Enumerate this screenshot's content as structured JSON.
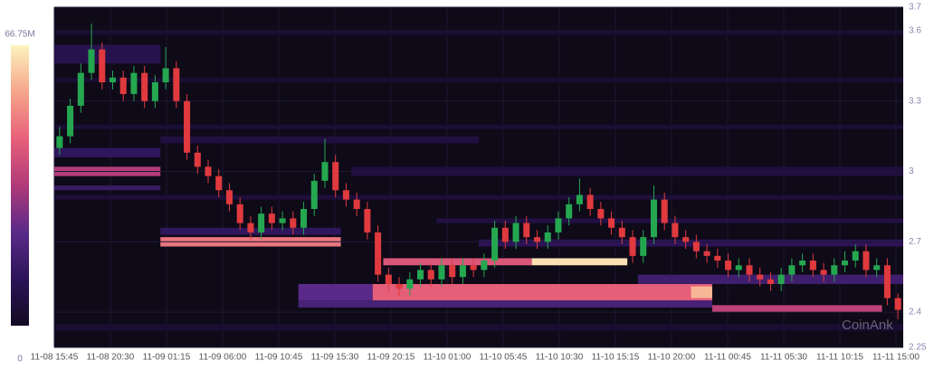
{
  "chart_data": {
    "type": "heatmap-candlestick",
    "watermark": "CoinAnk",
    "ylim": [
      2.25,
      3.7
    ],
    "yticks": [
      2.25,
      2.4,
      2.7,
      3,
      3.3,
      3.6,
      3.7
    ],
    "clim": [
      0,
      66750000
    ],
    "cticks": [
      0,
      {
        "value": 66750000,
        "label": "66.75M"
      }
    ],
    "colormap": [
      "#120a22",
      "#2c1458",
      "#5a2a8a",
      "#b03a78",
      "#e8607a",
      "#f5a58a",
      "#fdf3bf"
    ],
    "up_color": "#25a750",
    "down_color": "#e03a3e",
    "categories": [
      "11-08 15:45",
      "11-08 20:30",
      "11-09 01:15",
      "11-09 06:00",
      "11-09 10:45",
      "11-09 15:30",
      "11-09 20:15",
      "11-10 01:00",
      "11-10 05:45",
      "11-10 10:30",
      "11-10 15:15",
      "11-10 20:00",
      "11-11 00:45",
      "11-11 05:30",
      "11-11 10:15",
      "11-11 15:00"
    ],
    "candles": {
      "open": [
        3.1,
        3.15,
        3.28,
        3.42,
        3.52,
        3.38,
        3.4,
        3.33,
        3.42,
        3.3,
        3.38,
        3.44,
        3.3,
        3.08,
        3.02,
        2.98,
        2.92,
        2.86,
        2.78,
        2.74,
        2.82,
        2.78,
        2.8,
        2.76,
        2.84,
        2.96,
        3.04,
        2.92,
        2.88,
        2.84,
        2.74,
        2.56,
        2.52,
        2.5,
        2.54,
        2.58,
        2.54,
        2.6,
        2.55,
        2.6,
        2.58,
        2.62,
        2.76,
        2.7,
        2.78,
        2.72,
        2.7,
        2.74,
        2.8,
        2.86,
        2.9,
        2.84,
        2.8,
        2.76,
        2.72,
        2.64,
        2.72,
        2.88,
        2.78,
        2.72,
        2.7,
        2.66,
        2.64,
        2.62,
        2.58,
        2.6,
        2.56,
        2.54,
        2.52,
        2.56,
        2.6,
        2.62,
        2.58,
        2.56,
        2.6,
        2.62,
        2.66,
        2.58,
        2.6,
        2.46
      ],
      "high": [
        3.19,
        3.31,
        3.46,
        3.63,
        3.55,
        3.43,
        3.43,
        3.45,
        3.45,
        3.41,
        3.53,
        3.47,
        3.33,
        3.11,
        3.05,
        3.01,
        2.95,
        2.89,
        2.81,
        2.85,
        2.85,
        2.83,
        2.83,
        2.87,
        2.99,
        3.14,
        3.07,
        2.95,
        2.91,
        2.87,
        2.77,
        2.59,
        2.55,
        2.57,
        2.61,
        2.61,
        2.63,
        2.63,
        2.63,
        2.63,
        2.65,
        2.79,
        2.79,
        2.81,
        2.81,
        2.75,
        2.77,
        2.83,
        2.89,
        2.97,
        2.93,
        2.87,
        2.83,
        2.79,
        2.75,
        2.75,
        2.94,
        2.91,
        2.81,
        2.75,
        2.73,
        2.69,
        2.67,
        2.65,
        2.63,
        2.63,
        2.59,
        2.57,
        2.59,
        2.63,
        2.65,
        2.65,
        2.61,
        2.63,
        2.66,
        2.69,
        2.69,
        2.63,
        2.63,
        2.48
      ],
      "low": [
        3.07,
        3.12,
        3.25,
        3.39,
        3.35,
        3.35,
        3.3,
        3.3,
        3.27,
        3.27,
        3.35,
        3.27,
        3.05,
        2.99,
        2.95,
        2.89,
        2.83,
        2.75,
        2.71,
        2.71,
        2.75,
        2.75,
        2.73,
        2.73,
        2.81,
        2.93,
        2.89,
        2.85,
        2.81,
        2.71,
        2.53,
        2.49,
        2.47,
        2.47,
        2.51,
        2.51,
        2.51,
        2.52,
        2.52,
        2.55,
        2.55,
        2.59,
        2.67,
        2.67,
        2.69,
        2.67,
        2.67,
        2.71,
        2.77,
        2.83,
        2.81,
        2.77,
        2.73,
        2.69,
        2.61,
        2.61,
        2.69,
        2.75,
        2.69,
        2.67,
        2.63,
        2.61,
        2.59,
        2.55,
        2.55,
        2.53,
        2.51,
        2.49,
        2.49,
        2.53,
        2.57,
        2.55,
        2.53,
        2.53,
        2.57,
        2.59,
        2.55,
        2.55,
        2.43,
        2.37
      ],
      "close": [
        3.15,
        3.28,
        3.42,
        3.52,
        3.38,
        3.4,
        3.33,
        3.42,
        3.3,
        3.38,
        3.44,
        3.3,
        3.08,
        3.02,
        2.98,
        2.92,
        2.86,
        2.78,
        2.74,
        2.82,
        2.78,
        2.8,
        2.76,
        2.84,
        2.96,
        3.04,
        2.92,
        2.88,
        2.84,
        2.74,
        2.56,
        2.52,
        2.5,
        2.54,
        2.58,
        2.54,
        2.6,
        2.55,
        2.6,
        2.58,
        2.62,
        2.76,
        2.7,
        2.78,
        2.72,
        2.7,
        2.74,
        2.8,
        2.86,
        2.9,
        2.84,
        2.8,
        2.76,
        2.72,
        2.64,
        2.72,
        2.88,
        2.78,
        2.72,
        2.7,
        2.66,
        2.64,
        2.62,
        2.58,
        2.6,
        2.56,
        2.54,
        2.52,
        2.56,
        2.6,
        2.62,
        2.58,
        2.56,
        2.6,
        2.62,
        2.66,
        2.58,
        2.6,
        2.46,
        2.41
      ]
    },
    "zones": [
      {
        "x0": 0,
        "x1": 80,
        "y0": 3.58,
        "y1": 3.6,
        "value": 3000000
      },
      {
        "x0": 0,
        "x1": 80,
        "y0": 3.38,
        "y1": 3.4,
        "value": 3000000
      },
      {
        "x0": 0,
        "x1": 80,
        "y0": 3.18,
        "y1": 3.2,
        "value": 4000000
      },
      {
        "x0": 0,
        "x1": 80,
        "y0": 2.88,
        "y1": 2.9,
        "value": 5000000
      },
      {
        "x0": 0,
        "x1": 80,
        "y0": 2.32,
        "y1": 2.35,
        "value": 3000000
      },
      {
        "x0": 0,
        "x1": 10,
        "y0": 3.46,
        "y1": 3.54,
        "value": 9000000
      },
      {
        "x0": 0,
        "x1": 10,
        "y0": 3.06,
        "y1": 3.1,
        "value": 12000000
      },
      {
        "x0": 0,
        "x1": 10,
        "y0": 2.98,
        "y1": 3.02,
        "value": 34000000
      },
      {
        "x0": 0,
        "x1": 10,
        "y0": 2.92,
        "y1": 2.94,
        "value": 14000000
      },
      {
        "x0": 10,
        "x1": 40,
        "y0": 3.12,
        "y1": 3.15,
        "value": 6000000
      },
      {
        "x0": 28,
        "x1": 80,
        "y0": 2.98,
        "y1": 3.02,
        "value": 6000000
      },
      {
        "x0": 36,
        "x1": 80,
        "y0": 2.78,
        "y1": 2.8,
        "value": 7000000
      },
      {
        "x0": 10,
        "x1": 27,
        "y0": 2.73,
        "y1": 2.76,
        "value": 12000000
      },
      {
        "x0": 10,
        "x1": 27,
        "y0": 2.68,
        "y1": 2.72,
        "value": 48000000
      },
      {
        "x0": 40,
        "x1": 80,
        "y0": 2.68,
        "y1": 2.71,
        "value": 11000000
      },
      {
        "x0": 55,
        "x1": 80,
        "y0": 2.52,
        "y1": 2.56,
        "value": 16000000
      },
      {
        "x0": 31,
        "x1": 45,
        "y0": 2.6,
        "y1": 2.63,
        "value": 42000000
      },
      {
        "x0": 45,
        "x1": 54,
        "y0": 2.6,
        "y1": 2.63,
        "value": 64000000
      },
      {
        "x0": 23,
        "x1": 30,
        "y0": 2.45,
        "y1": 2.52,
        "value": 22000000
      },
      {
        "x0": 30,
        "x1": 62,
        "y0": 2.45,
        "y1": 2.52,
        "value": 44000000
      },
      {
        "x0": 60,
        "x1": 62,
        "y0": 2.46,
        "y1": 2.51,
        "value": 58000000
      },
      {
        "x0": 23,
        "x1": 62,
        "y0": 2.42,
        "y1": 2.45,
        "value": 18000000
      },
      {
        "x0": 62,
        "x1": 78,
        "y0": 2.4,
        "y1": 2.43,
        "value": 36000000
      }
    ]
  }
}
